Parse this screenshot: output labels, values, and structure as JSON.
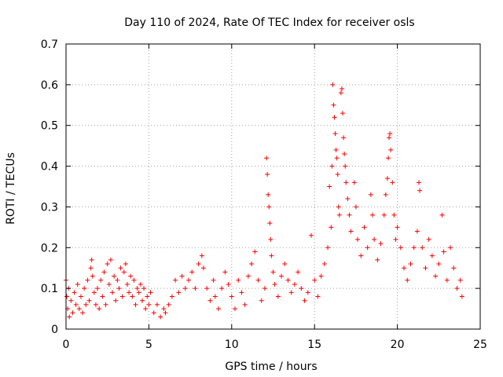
{
  "chart_data": {
    "type": "scatter",
    "title": "Day 110 of 2024, Rate Of TEC Index for receiver osls",
    "xlabel": "GPS time / hours",
    "ylabel": "ROTI / TECUs",
    "xlim": [
      0,
      25
    ],
    "ylim": [
      0,
      0.7
    ],
    "xticks": [
      0,
      5,
      10,
      15,
      20,
      25
    ],
    "xtick_labels": [
      "0",
      "5",
      "10",
      "15",
      "20",
      "25"
    ],
    "yticks": [
      0,
      0.1,
      0.2,
      0.3,
      0.4,
      0.5,
      0.6,
      0.7
    ],
    "ytick_labels": [
      "0",
      "0.1",
      "0.2",
      "0.3",
      "0.4",
      "0.5",
      "0.6",
      "0.7"
    ],
    "grid": true,
    "marker": "plus",
    "color": "#ff0000",
    "series": [
      {
        "points": [
          [
            0.0,
            0.12
          ],
          [
            0.05,
            0.08
          ],
          [
            0.1,
            0.05
          ],
          [
            0.15,
            0.1
          ],
          [
            0.2,
            0.03
          ],
          [
            0.3,
            0.07
          ],
          [
            0.4,
            0.04
          ],
          [
            0.5,
            0.09
          ],
          [
            0.6,
            0.06
          ],
          [
            0.7,
            0.11
          ],
          [
            0.8,
            0.05
          ],
          [
            0.9,
            0.08
          ],
          [
            1.0,
            0.04
          ],
          [
            1.1,
            0.1
          ],
          [
            1.2,
            0.06
          ],
          [
            1.3,
            0.12
          ],
          [
            1.4,
            0.07
          ],
          [
            1.5,
            0.15
          ],
          [
            1.55,
            0.17
          ],
          [
            1.6,
            0.13
          ],
          [
            1.7,
            0.09
          ],
          [
            1.8,
            0.06
          ],
          [
            1.9,
            0.1
          ],
          [
            2.0,
            0.05
          ],
          [
            2.1,
            0.12
          ],
          [
            2.2,
            0.08
          ],
          [
            2.3,
            0.14
          ],
          [
            2.4,
            0.06
          ],
          [
            2.5,
            0.16
          ],
          [
            2.6,
            0.11
          ],
          [
            2.7,
            0.17
          ],
          [
            2.8,
            0.09
          ],
          [
            2.9,
            0.13
          ],
          [
            3.0,
            0.07
          ],
          [
            3.1,
            0.12
          ],
          [
            3.2,
            0.1
          ],
          [
            3.3,
            0.15
          ],
          [
            3.4,
            0.08
          ],
          [
            3.5,
            0.14
          ],
          [
            3.6,
            0.16
          ],
          [
            3.7,
            0.11
          ],
          [
            3.8,
            0.09
          ],
          [
            3.9,
            0.13
          ],
          [
            4.0,
            0.08
          ],
          [
            4.1,
            0.12
          ],
          [
            4.2,
            0.06
          ],
          [
            4.3,
            0.1
          ],
          [
            4.4,
            0.09
          ],
          [
            4.5,
            0.11
          ],
          [
            4.6,
            0.07
          ],
          [
            4.7,
            0.1
          ],
          [
            4.8,
            0.05
          ],
          [
            4.9,
            0.08
          ],
          [
            5.0,
            0.06
          ],
          [
            5.1,
            0.09
          ],
          [
            5.3,
            0.04
          ],
          [
            5.5,
            0.06
          ],
          [
            5.7,
            0.03
          ],
          [
            5.9,
            0.05
          ],
          [
            6.0,
            0.04
          ],
          [
            6.2,
            0.06
          ],
          [
            6.4,
            0.08
          ],
          [
            6.6,
            0.12
          ],
          [
            6.8,
            0.09
          ],
          [
            7.0,
            0.13
          ],
          [
            7.2,
            0.1
          ],
          [
            7.4,
            0.12
          ],
          [
            7.6,
            0.14
          ],
          [
            7.8,
            0.1
          ],
          [
            8.0,
            0.16
          ],
          [
            8.2,
            0.18
          ],
          [
            8.3,
            0.15
          ],
          [
            8.5,
            0.1
          ],
          [
            8.7,
            0.07
          ],
          [
            8.9,
            0.12
          ],
          [
            9.0,
            0.08
          ],
          [
            9.2,
            0.05
          ],
          [
            9.4,
            0.1
          ],
          [
            9.6,
            0.14
          ],
          [
            9.8,
            0.11
          ],
          [
            10.0,
            0.08
          ],
          [
            10.2,
            0.05
          ],
          [
            10.4,
            0.12
          ],
          [
            10.6,
            0.09
          ],
          [
            10.8,
            0.06
          ],
          [
            11.0,
            0.13
          ],
          [
            11.2,
            0.16
          ],
          [
            11.4,
            0.19
          ],
          [
            11.6,
            0.12
          ],
          [
            11.8,
            0.07
          ],
          [
            12.0,
            0.1
          ],
          [
            12.1,
            0.42
          ],
          [
            12.15,
            0.38
          ],
          [
            12.2,
            0.33
          ],
          [
            12.25,
            0.3
          ],
          [
            12.3,
            0.26
          ],
          [
            12.35,
            0.22
          ],
          [
            12.4,
            0.18
          ],
          [
            12.5,
            0.14
          ],
          [
            12.6,
            0.11
          ],
          [
            12.8,
            0.08
          ],
          [
            13.0,
            0.13
          ],
          [
            13.2,
            0.16
          ],
          [
            13.4,
            0.12
          ],
          [
            13.6,
            0.09
          ],
          [
            13.8,
            0.11
          ],
          [
            14.0,
            0.14
          ],
          [
            14.2,
            0.1
          ],
          [
            14.4,
            0.07
          ],
          [
            14.6,
            0.09
          ],
          [
            14.8,
            0.23
          ],
          [
            15.0,
            0.12
          ],
          [
            15.2,
            0.08
          ],
          [
            15.4,
            0.13
          ],
          [
            15.6,
            0.16
          ],
          [
            15.8,
            0.2
          ],
          [
            15.9,
            0.35
          ],
          [
            16.0,
            0.25
          ],
          [
            16.05,
            0.4
          ],
          [
            16.1,
            0.6
          ],
          [
            16.15,
            0.55
          ],
          [
            16.2,
            0.52
          ],
          [
            16.25,
            0.48
          ],
          [
            16.3,
            0.44
          ],
          [
            16.35,
            0.42
          ],
          [
            16.4,
            0.38
          ],
          [
            16.45,
            0.3
          ],
          [
            16.5,
            0.28
          ],
          [
            16.6,
            0.58
          ],
          [
            16.65,
            0.59
          ],
          [
            16.7,
            0.53
          ],
          [
            16.75,
            0.47
          ],
          [
            16.8,
            0.43
          ],
          [
            16.85,
            0.4
          ],
          [
            16.9,
            0.36
          ],
          [
            17.0,
            0.32
          ],
          [
            17.1,
            0.28
          ],
          [
            17.2,
            0.24
          ],
          [
            17.4,
            0.36
          ],
          [
            17.5,
            0.3
          ],
          [
            17.6,
            0.22
          ],
          [
            17.8,
            0.18
          ],
          [
            18.0,
            0.25
          ],
          [
            18.2,
            0.2
          ],
          [
            18.4,
            0.33
          ],
          [
            18.5,
            0.28
          ],
          [
            18.6,
            0.22
          ],
          [
            18.8,
            0.17
          ],
          [
            19.0,
            0.21
          ],
          [
            19.2,
            0.28
          ],
          [
            19.3,
            0.33
          ],
          [
            19.4,
            0.37
          ],
          [
            19.45,
            0.42
          ],
          [
            19.5,
            0.47
          ],
          [
            19.55,
            0.48
          ],
          [
            19.6,
            0.44
          ],
          [
            19.7,
            0.36
          ],
          [
            19.8,
            0.28
          ],
          [
            19.9,
            0.22
          ],
          [
            20.0,
            0.25
          ],
          [
            20.2,
            0.2
          ],
          [
            20.4,
            0.15
          ],
          [
            20.6,
            0.12
          ],
          [
            20.8,
            0.16
          ],
          [
            21.0,
            0.2
          ],
          [
            21.2,
            0.24
          ],
          [
            21.3,
            0.36
          ],
          [
            21.35,
            0.34
          ],
          [
            21.5,
            0.2
          ],
          [
            21.7,
            0.15
          ],
          [
            21.9,
            0.22
          ],
          [
            22.1,
            0.18
          ],
          [
            22.3,
            0.13
          ],
          [
            22.5,
            0.16
          ],
          [
            22.7,
            0.28
          ],
          [
            22.8,
            0.19
          ],
          [
            23.0,
            0.12
          ],
          [
            23.2,
            0.2
          ],
          [
            23.4,
            0.15
          ],
          [
            23.6,
            0.1
          ],
          [
            23.8,
            0.12
          ],
          [
            23.9,
            0.08
          ]
        ]
      }
    ]
  }
}
